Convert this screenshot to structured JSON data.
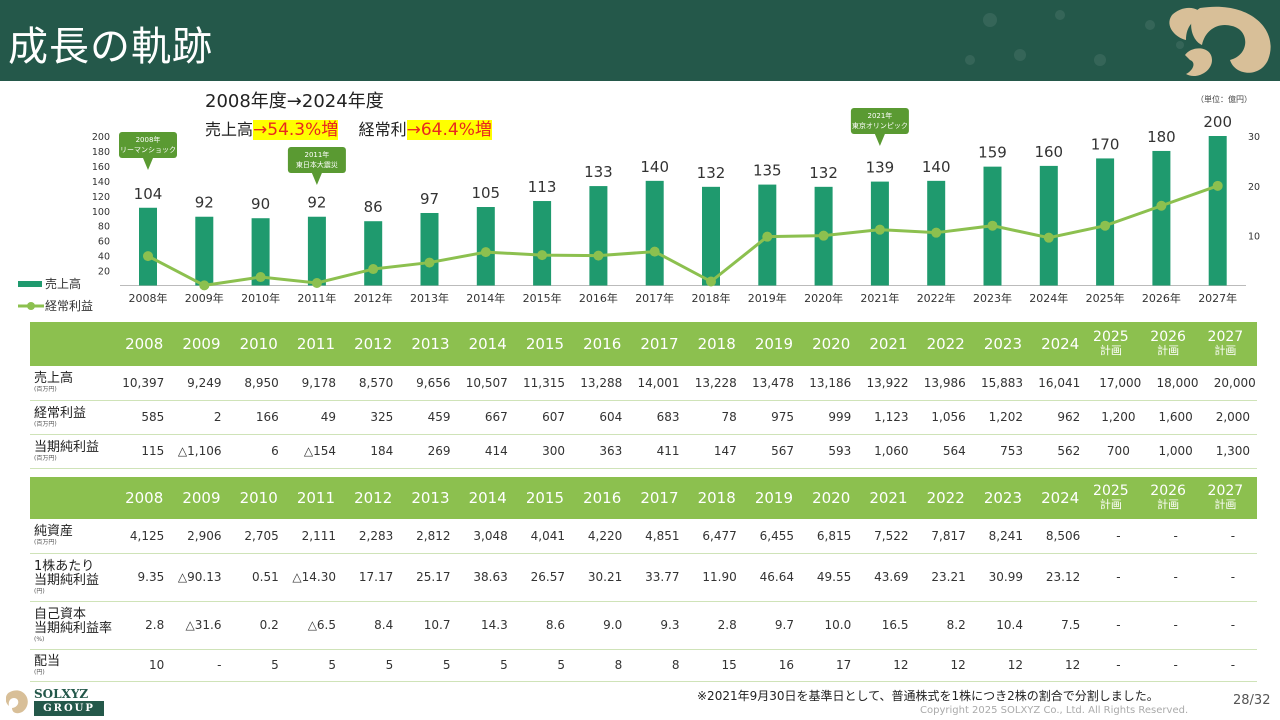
{
  "page": {
    "title": "成長の軌跡",
    "subtitle": "2008年度→2024年度",
    "growth_sales_label": "売上高",
    "growth_sales_value": "→54.3%増",
    "growth_profit_label": "経常利",
    "growth_profit_value": "→64.4%増",
    "unit_note": "（単位：億円）",
    "footnote": "※2021年9月30日を基準日として、普通株式を1株につき2株の割合で分割しました。",
    "page_number": "28/32",
    "copyright": "Copyright  2025 SOLXYZ Co., Ltd. All Rights Reserved.",
    "logo_text": "SOLXYZ",
    "logo_group": "GROUP"
  },
  "colors": {
    "header": "#24584a",
    "bar": "#1f9a6e",
    "line": "#8cc04f",
    "table_header": "#8cc04f",
    "highlight": "#ffff00",
    "highlight_text": "#e8281e",
    "callout": "#5a9a32"
  },
  "chart_data": {
    "type": "bar",
    "categories": [
      "2008年",
      "2009年",
      "2010年",
      "2011年",
      "2012年",
      "2013年",
      "2014年",
      "2015年",
      "2016年",
      "2017年",
      "2018年",
      "2019年",
      "2020年",
      "2021年",
      "2022年",
      "2023年",
      "2024年",
      "2025年",
      "2026年",
      "2027年"
    ],
    "series": [
      {
        "name": "売上高",
        "type": "bar",
        "axis": "left",
        "values": [
          104,
          92,
          90,
          92,
          86,
          97,
          105,
          113,
          133,
          140,
          132,
          135,
          132,
          139,
          140,
          159,
          160,
          170,
          180,
          200
        ]
      },
      {
        "name": "経常利益",
        "type": "line",
        "axis": "right",
        "values": [
          5.9,
          0.02,
          1.7,
          0.5,
          3.3,
          4.6,
          6.7,
          6.1,
          6.0,
          6.8,
          0.8,
          9.8,
          10.0,
          11.2,
          10.6,
          12.0,
          9.6,
          12.0,
          16.0,
          20.0
        ]
      }
    ],
    "yticks_left": [
      20,
      40,
      60,
      80,
      100,
      120,
      140,
      160,
      180,
      200
    ],
    "yticks_right": [
      10,
      20,
      30
    ],
    "ylim_left": [
      0,
      200
    ],
    "ylim_right": [
      0,
      30
    ],
    "annotations": [
      {
        "category": "2008年",
        "text": "2008年\nリーマンショック"
      },
      {
        "category": "2011年",
        "text": "2011年\n東日本大震災"
      },
      {
        "category": "2021年",
        "text": "2021年\n東京オリンピック"
      }
    ]
  },
  "table1": {
    "years": [
      {
        "year": "2008",
        "note": ""
      },
      {
        "year": "2009",
        "note": ""
      },
      {
        "year": "2010",
        "note": ""
      },
      {
        "year": "2011",
        "note": ""
      },
      {
        "year": "2012",
        "note": ""
      },
      {
        "year": "2013",
        "note": ""
      },
      {
        "year": "2014",
        "note": ""
      },
      {
        "year": "2015",
        "note": ""
      },
      {
        "year": "2016",
        "note": ""
      },
      {
        "year": "2017",
        "note": ""
      },
      {
        "year": "2018",
        "note": ""
      },
      {
        "year": "2019",
        "note": ""
      },
      {
        "year": "2020",
        "note": ""
      },
      {
        "year": "2021",
        "note": ""
      },
      {
        "year": "2022",
        "note": ""
      },
      {
        "year": "2023",
        "note": ""
      },
      {
        "year": "2024",
        "note": ""
      },
      {
        "year": "2025",
        "note": "計画"
      },
      {
        "year": "2026",
        "note": "計画"
      },
      {
        "year": "2027",
        "note": "計画"
      }
    ],
    "rows": [
      {
        "label": "売上高",
        "unit": "(百万円)",
        "values": [
          "10,397",
          "9,249",
          "8,950",
          "9,178",
          "8,570",
          "9,656",
          "10,507",
          "11,315",
          "13,288",
          "14,001",
          "13,228",
          "13,478",
          "13,186",
          "13,922",
          "13,986",
          "15,883",
          "16,041",
          "17,000",
          "18,000",
          "20,000"
        ]
      },
      {
        "label": "経常利益",
        "unit": "(百万円)",
        "values": [
          "585",
          "2",
          "166",
          "49",
          "325",
          "459",
          "667",
          "607",
          "604",
          "683",
          "78",
          "975",
          "999",
          "1,123",
          "1,056",
          "1,202",
          "962",
          "1,200",
          "1,600",
          "2,000"
        ]
      },
      {
        "label": "当期純利益",
        "unit": "(百万円)",
        "values": [
          "115",
          "△1,106",
          "6",
          "△154",
          "184",
          "269",
          "414",
          "300",
          "363",
          "411",
          "147",
          "567",
          "593",
          "1,060",
          "564",
          "753",
          "562",
          "700",
          "1,000",
          "1,300"
        ]
      }
    ]
  },
  "table2": {
    "years": [
      {
        "year": "2008",
        "note": ""
      },
      {
        "year": "2009",
        "note": ""
      },
      {
        "year": "2010",
        "note": ""
      },
      {
        "year": "2011",
        "note": ""
      },
      {
        "year": "2012",
        "note": ""
      },
      {
        "year": "2013",
        "note": ""
      },
      {
        "year": "2014",
        "note": ""
      },
      {
        "year": "2015",
        "note": ""
      },
      {
        "year": "2016",
        "note": ""
      },
      {
        "year": "2017",
        "note": ""
      },
      {
        "year": "2018",
        "note": ""
      },
      {
        "year": "2019",
        "note": ""
      },
      {
        "year": "2020",
        "note": ""
      },
      {
        "year": "2021",
        "note": ""
      },
      {
        "year": "2022",
        "note": ""
      },
      {
        "year": "2023",
        "note": ""
      },
      {
        "year": "2024",
        "note": ""
      },
      {
        "year": "2025",
        "note": "計画"
      },
      {
        "year": "2026",
        "note": "計画"
      },
      {
        "year": "2027",
        "note": "計画"
      }
    ],
    "rows": [
      {
        "label": "純資産",
        "unit": "(百万円)",
        "values": [
          "4,125",
          "2,906",
          "2,705",
          "2,111",
          "2,283",
          "2,812",
          "3,048",
          "4,041",
          "4,220",
          "4,851",
          "6,477",
          "6,455",
          "6,815",
          "7,522",
          "7,817",
          "8,241",
          "8,506",
          "-",
          "-",
          "-"
        ]
      },
      {
        "label": "1株あたり\n当期純利益",
        "unit": "(円)",
        "values": [
          "9.35",
          "△90.13",
          "0.51",
          "△14.30",
          "17.17",
          "25.17",
          "38.63",
          "26.57",
          "30.21",
          "33.77",
          "11.90",
          "46.64",
          "49.55",
          "43.69",
          "23.21",
          "30.99",
          "23.12",
          "-",
          "-",
          "-"
        ]
      },
      {
        "label": "自己資本\n当期純利益率",
        "unit": "(%)",
        "values": [
          "2.8",
          "△31.6",
          "0.2",
          "△6.5",
          "8.4",
          "10.7",
          "14.3",
          "8.6",
          "9.0",
          "9.3",
          "2.8",
          "9.7",
          "10.0",
          "16.5",
          "8.2",
          "10.4",
          "7.5",
          "-",
          "-",
          "-"
        ]
      },
      {
        "label": "配当",
        "unit": "(円)",
        "values": [
          "10",
          "-",
          "5",
          "5",
          "5",
          "5",
          "5",
          "5",
          "8",
          "8",
          "15",
          "16",
          "17",
          "12",
          "12",
          "12",
          "12",
          "-",
          "-",
          "-"
        ]
      }
    ]
  }
}
